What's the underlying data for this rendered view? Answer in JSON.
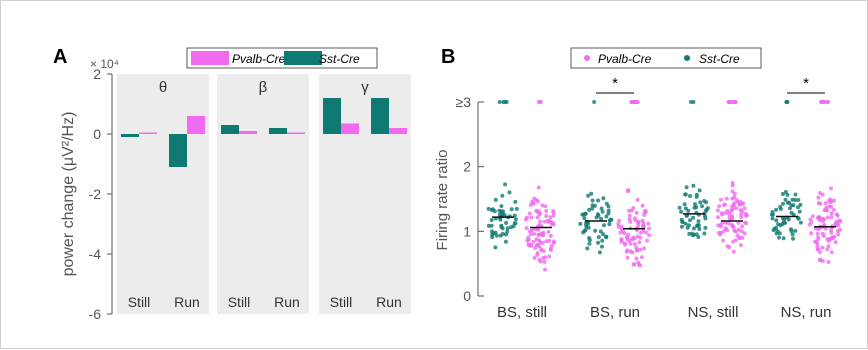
{
  "colors": {
    "pvalb": "#f06bf0",
    "sst": "#0f7a72",
    "panel_bg": "#ececec",
    "axis": "#555555",
    "median": "#111111"
  },
  "chart_data": [
    {
      "panel_label": "A",
      "type": "bar",
      "ylabel": "power change (μV²/Hz)",
      "y_exponent_label": "× 10⁴",
      "ylim": [
        -6,
        2
      ],
      "yticks": [
        2,
        0,
        -2,
        -4,
        -6
      ],
      "bands": [
        "θ",
        "β",
        "γ"
      ],
      "conditions": [
        "Still",
        "Run"
      ],
      "series": [
        {
          "name": "Pvalb-Cre",
          "color_key": "pvalb",
          "values": [
            [
              0.05,
              0.6
            ],
            [
              0.1,
              0.05
            ],
            [
              0.35,
              0.2
            ]
          ]
        },
        {
          "name": "Sst-Cre",
          "color_key": "sst",
          "values": [
            [
              -0.1,
              -1.1
            ],
            [
              0.3,
              0.2
            ],
            [
              1.2,
              1.2
            ]
          ]
        }
      ],
      "legend": [
        "Pvalb-Cre",
        "Sst-Cre"
      ],
      "legend_position": "top-right"
    },
    {
      "panel_label": "B",
      "type": "scatter",
      "ylabel": "Firing rate ratio",
      "ylim": [
        0,
        3
      ],
      "ytick_labels": [
        "≥3",
        "2",
        "1",
        "0"
      ],
      "yticks": [
        3,
        2,
        1,
        0
      ],
      "categories": [
        "BS, still",
        "BS, run",
        "NS, still",
        "NS, run"
      ],
      "medians": {
        "Sst-Cre": [
          1.22,
          1.16,
          1.27,
          1.23
        ],
        "Pvalb-Cre": [
          1.06,
          1.04,
          1.16,
          1.07
        ]
      },
      "significance": [
        {
          "category": "BS, run",
          "label": "*"
        },
        {
          "category": "NS, run",
          "label": "*"
        }
      ],
      "series": [
        {
          "name": "Pvalb-Cre",
          "color_key": "pvalb"
        },
        {
          "name": "Sst-Cre",
          "color_key": "sst"
        }
      ],
      "legend": [
        "Pvalb-Cre",
        "Sst-Cre"
      ],
      "legend_position": "top-right"
    }
  ]
}
